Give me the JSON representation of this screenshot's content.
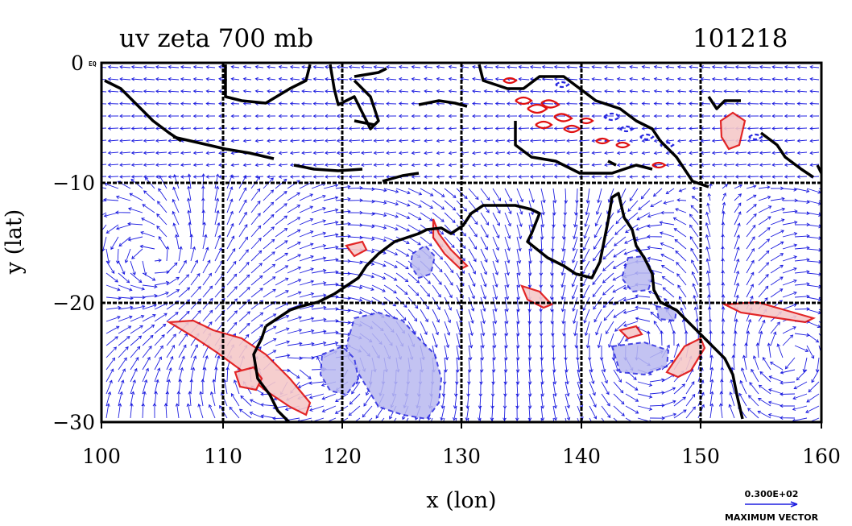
{
  "title_left": "uv zeta 700 mb",
  "title_right": "101218",
  "xlabel": "x (lon)",
  "ylabel": "y (lat)",
  "corner_label": "0",
  "corner_small": "EQ",
  "x_ticks": [
    "100",
    "110",
    "120",
    "130",
    "140",
    "150",
    "160"
  ],
  "y_ticks": [
    "−10",
    "−20",
    "−30"
  ],
  "ref_vector_value": "0.300E+02",
  "ref_vector_label": "MAXIMUM VECTOR",
  "colors": {
    "vector": "#1f1fe0",
    "pos_contour": "#e01010",
    "pos_fill": "#f6c9c9",
    "neg_contour": "#2626e0",
    "neg_fill": "#b9b9f0",
    "coast": "#000000"
  },
  "chart_data": {
    "type": "vector-field-map",
    "x_range": [
      100,
      160
    ],
    "y_range": [
      -30,
      0
    ],
    "x_gridlines": [
      110,
      120,
      130,
      140,
      150
    ],
    "y_gridlines": [
      -10,
      -20
    ],
    "grid": true
  }
}
